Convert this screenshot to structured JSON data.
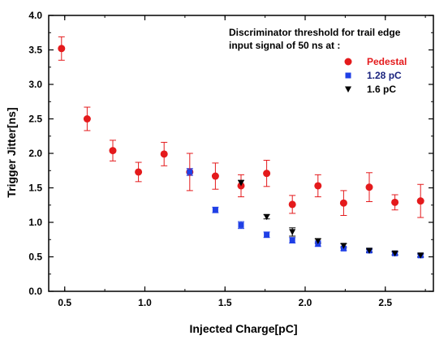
{
  "chart_data": {
    "type": "scatter",
    "title": "",
    "xlabel": "Injected Charge[pC]",
    "ylabel": "Trigger Jitter[ns]",
    "xlim": [
      0.4,
      2.8
    ],
    "ylim": [
      0.0,
      4.0
    ],
    "xticks": [
      "0.5",
      "1.0",
      "1.5",
      "2.0",
      "2.5"
    ],
    "yticks": [
      "0.0",
      "0.5",
      "1.0",
      "1.5",
      "2.0",
      "2.5",
      "3.0",
      "3.5",
      "4.0"
    ],
    "grid": false,
    "legend_position": "top-right",
    "annotation_lines": [
      "Discriminator threshold for trail edge",
      "input signal of 50 ns at :"
    ],
    "series": [
      {
        "name": "Pedestal",
        "marker": "circle",
        "color": "#e41a1c",
        "label_color": "#e41a1c",
        "points": [
          {
            "x": 0.48,
            "y": 3.52,
            "err": 0.17
          },
          {
            "x": 0.64,
            "y": 2.5,
            "err": 0.17
          },
          {
            "x": 0.8,
            "y": 2.04,
            "err": 0.15
          },
          {
            "x": 0.96,
            "y": 1.73,
            "err": 0.14
          },
          {
            "x": 1.12,
            "y": 1.99,
            "err": 0.17
          },
          {
            "x": 1.28,
            "y": 1.73,
            "err": 0.27
          },
          {
            "x": 1.44,
            "y": 1.67,
            "err": 0.19
          },
          {
            "x": 1.6,
            "y": 1.53,
            "err": 0.16
          },
          {
            "x": 1.76,
            "y": 1.71,
            "err": 0.19
          },
          {
            "x": 1.92,
            "y": 1.26,
            "err": 0.13
          },
          {
            "x": 2.08,
            "y": 1.53,
            "err": 0.16
          },
          {
            "x": 2.24,
            "y": 1.28,
            "err": 0.18
          },
          {
            "x": 2.4,
            "y": 1.51,
            "err": 0.21
          },
          {
            "x": 2.56,
            "y": 1.29,
            "err": 0.11
          },
          {
            "x": 2.72,
            "y": 1.31,
            "err": 0.24
          }
        ]
      },
      {
        "name": "1.28 pC",
        "marker": "square",
        "color": "#1f3fe6",
        "label_color": "#1a237e",
        "points": [
          {
            "x": 1.28,
            "y": 1.73,
            "err": 0.05
          },
          {
            "x": 1.44,
            "y": 1.18,
            "err": 0.04
          },
          {
            "x": 1.6,
            "y": 0.96,
            "err": 0.05
          },
          {
            "x": 1.76,
            "y": 0.82,
            "err": 0.04
          },
          {
            "x": 1.92,
            "y": 0.74,
            "err": 0.04
          },
          {
            "x": 2.08,
            "y": 0.69,
            "err": 0.04
          },
          {
            "x": 2.24,
            "y": 0.62,
            "err": 0.03
          },
          {
            "x": 2.4,
            "y": 0.59,
            "err": 0.03
          },
          {
            "x": 2.56,
            "y": 0.55,
            "err": 0.03
          },
          {
            "x": 2.72,
            "y": 0.52,
            "err": 0.03
          }
        ]
      },
      {
        "name": "1.6 pC",
        "marker": "triangle-down",
        "color": "#000000",
        "label_color": "#000000",
        "points": [
          {
            "x": 1.6,
            "y": 1.57,
            "err": 0.04
          },
          {
            "x": 1.76,
            "y": 1.08,
            "err": 0.03
          },
          {
            "x": 1.92,
            "y": 0.86,
            "err": 0.06
          },
          {
            "x": 2.08,
            "y": 0.73,
            "err": 0.03
          },
          {
            "x": 2.24,
            "y": 0.66,
            "err": 0.03
          },
          {
            "x": 2.4,
            "y": 0.59,
            "err": 0.02
          },
          {
            "x": 2.56,
            "y": 0.55,
            "err": 0.02
          },
          {
            "x": 2.72,
            "y": 0.52,
            "err": 0.02
          }
        ]
      }
    ]
  }
}
